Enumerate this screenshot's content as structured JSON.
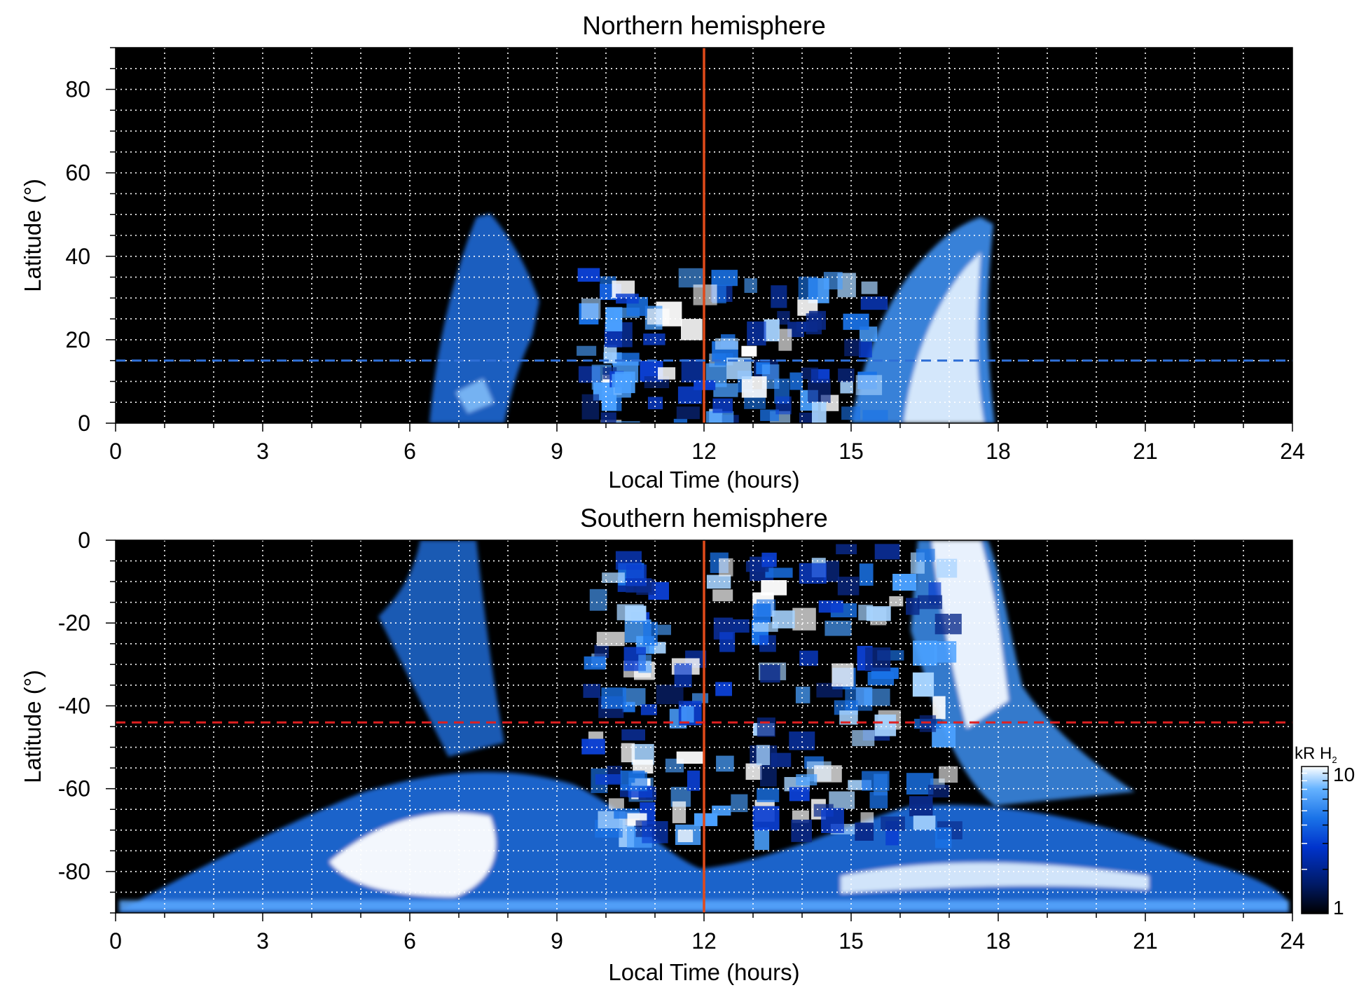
{
  "chart_data": [
    {
      "type": "heatmap",
      "title": "Northern hemisphere",
      "xlabel": "Local Time (hours)",
      "ylabel": "Latitude (°)",
      "xlim": [
        0,
        24
      ],
      "ylim": [
        0,
        90
      ],
      "xticks": [
        0,
        3,
        6,
        9,
        12,
        15,
        18,
        21,
        24
      ],
      "yticks": [
        0,
        20,
        40,
        60,
        80
      ],
      "grid": true,
      "background": "#000000",
      "reference_lines": [
        {
          "orientation": "vertical",
          "value": 12,
          "style": "solid",
          "color": "#e04a1a"
        },
        {
          "orientation": "horizontal",
          "value": 15,
          "style": "dashed",
          "color": "#2f6fd6"
        }
      ],
      "regions": [
        {
          "lt": [
            6.4,
            8.8
          ],
          "lat": [
            0,
            50
          ],
          "intensity": "moderate"
        },
        {
          "lt": [
            9.4,
            15.4
          ],
          "lat": [
            0,
            38
          ],
          "intensity": "patchy"
        },
        {
          "lt": [
            14.6,
            18.0
          ],
          "lat": [
            0,
            50
          ],
          "intensity": "bright"
        }
      ]
    },
    {
      "type": "heatmap",
      "title": "Southern hemisphere",
      "xlabel": "Local Time (hours)",
      "ylabel": "Latitude (°)",
      "xlim": [
        0,
        24
      ],
      "ylim": [
        -90,
        0
      ],
      "xticks": [
        0,
        3,
        6,
        9,
        12,
        15,
        18,
        21,
        24
      ],
      "yticks": [
        0,
        -20,
        -40,
        -60,
        -80
      ],
      "grid": true,
      "background": "#000000",
      "reference_lines": [
        {
          "orientation": "vertical",
          "value": 12,
          "style": "solid",
          "color": "#e04a1a"
        },
        {
          "orientation": "horizontal",
          "value": -44,
          "style": "dashed",
          "color": "#e02020"
        }
      ],
      "regions": [
        {
          "lt": [
            6.0,
            7.4
          ],
          "lat": [
            -60,
            0
          ],
          "intensity": "moderate"
        },
        {
          "lt": [
            9.5,
            16.8
          ],
          "lat": [
            -70,
            0
          ],
          "intensity": "patchy"
        },
        {
          "lt": [
            16.6,
            18.5
          ],
          "lat": [
            -70,
            0
          ],
          "intensity": "bright"
        },
        {
          "lt": [
            0.2,
            23.8
          ],
          "lat": [
            -88,
            -68
          ],
          "intensity": "bright oval"
        }
      ],
      "colorbar": {
        "label": "kR H",
        "label_subscript": "2",
        "scale": "log",
        "min": 1,
        "max": 10,
        "min_label": "1",
        "max_label": "10",
        "colors": [
          "#000000",
          "#001a66",
          "#0033cc",
          "#1a73e8",
          "#66b3ff",
          "#ffffff"
        ]
      }
    }
  ]
}
